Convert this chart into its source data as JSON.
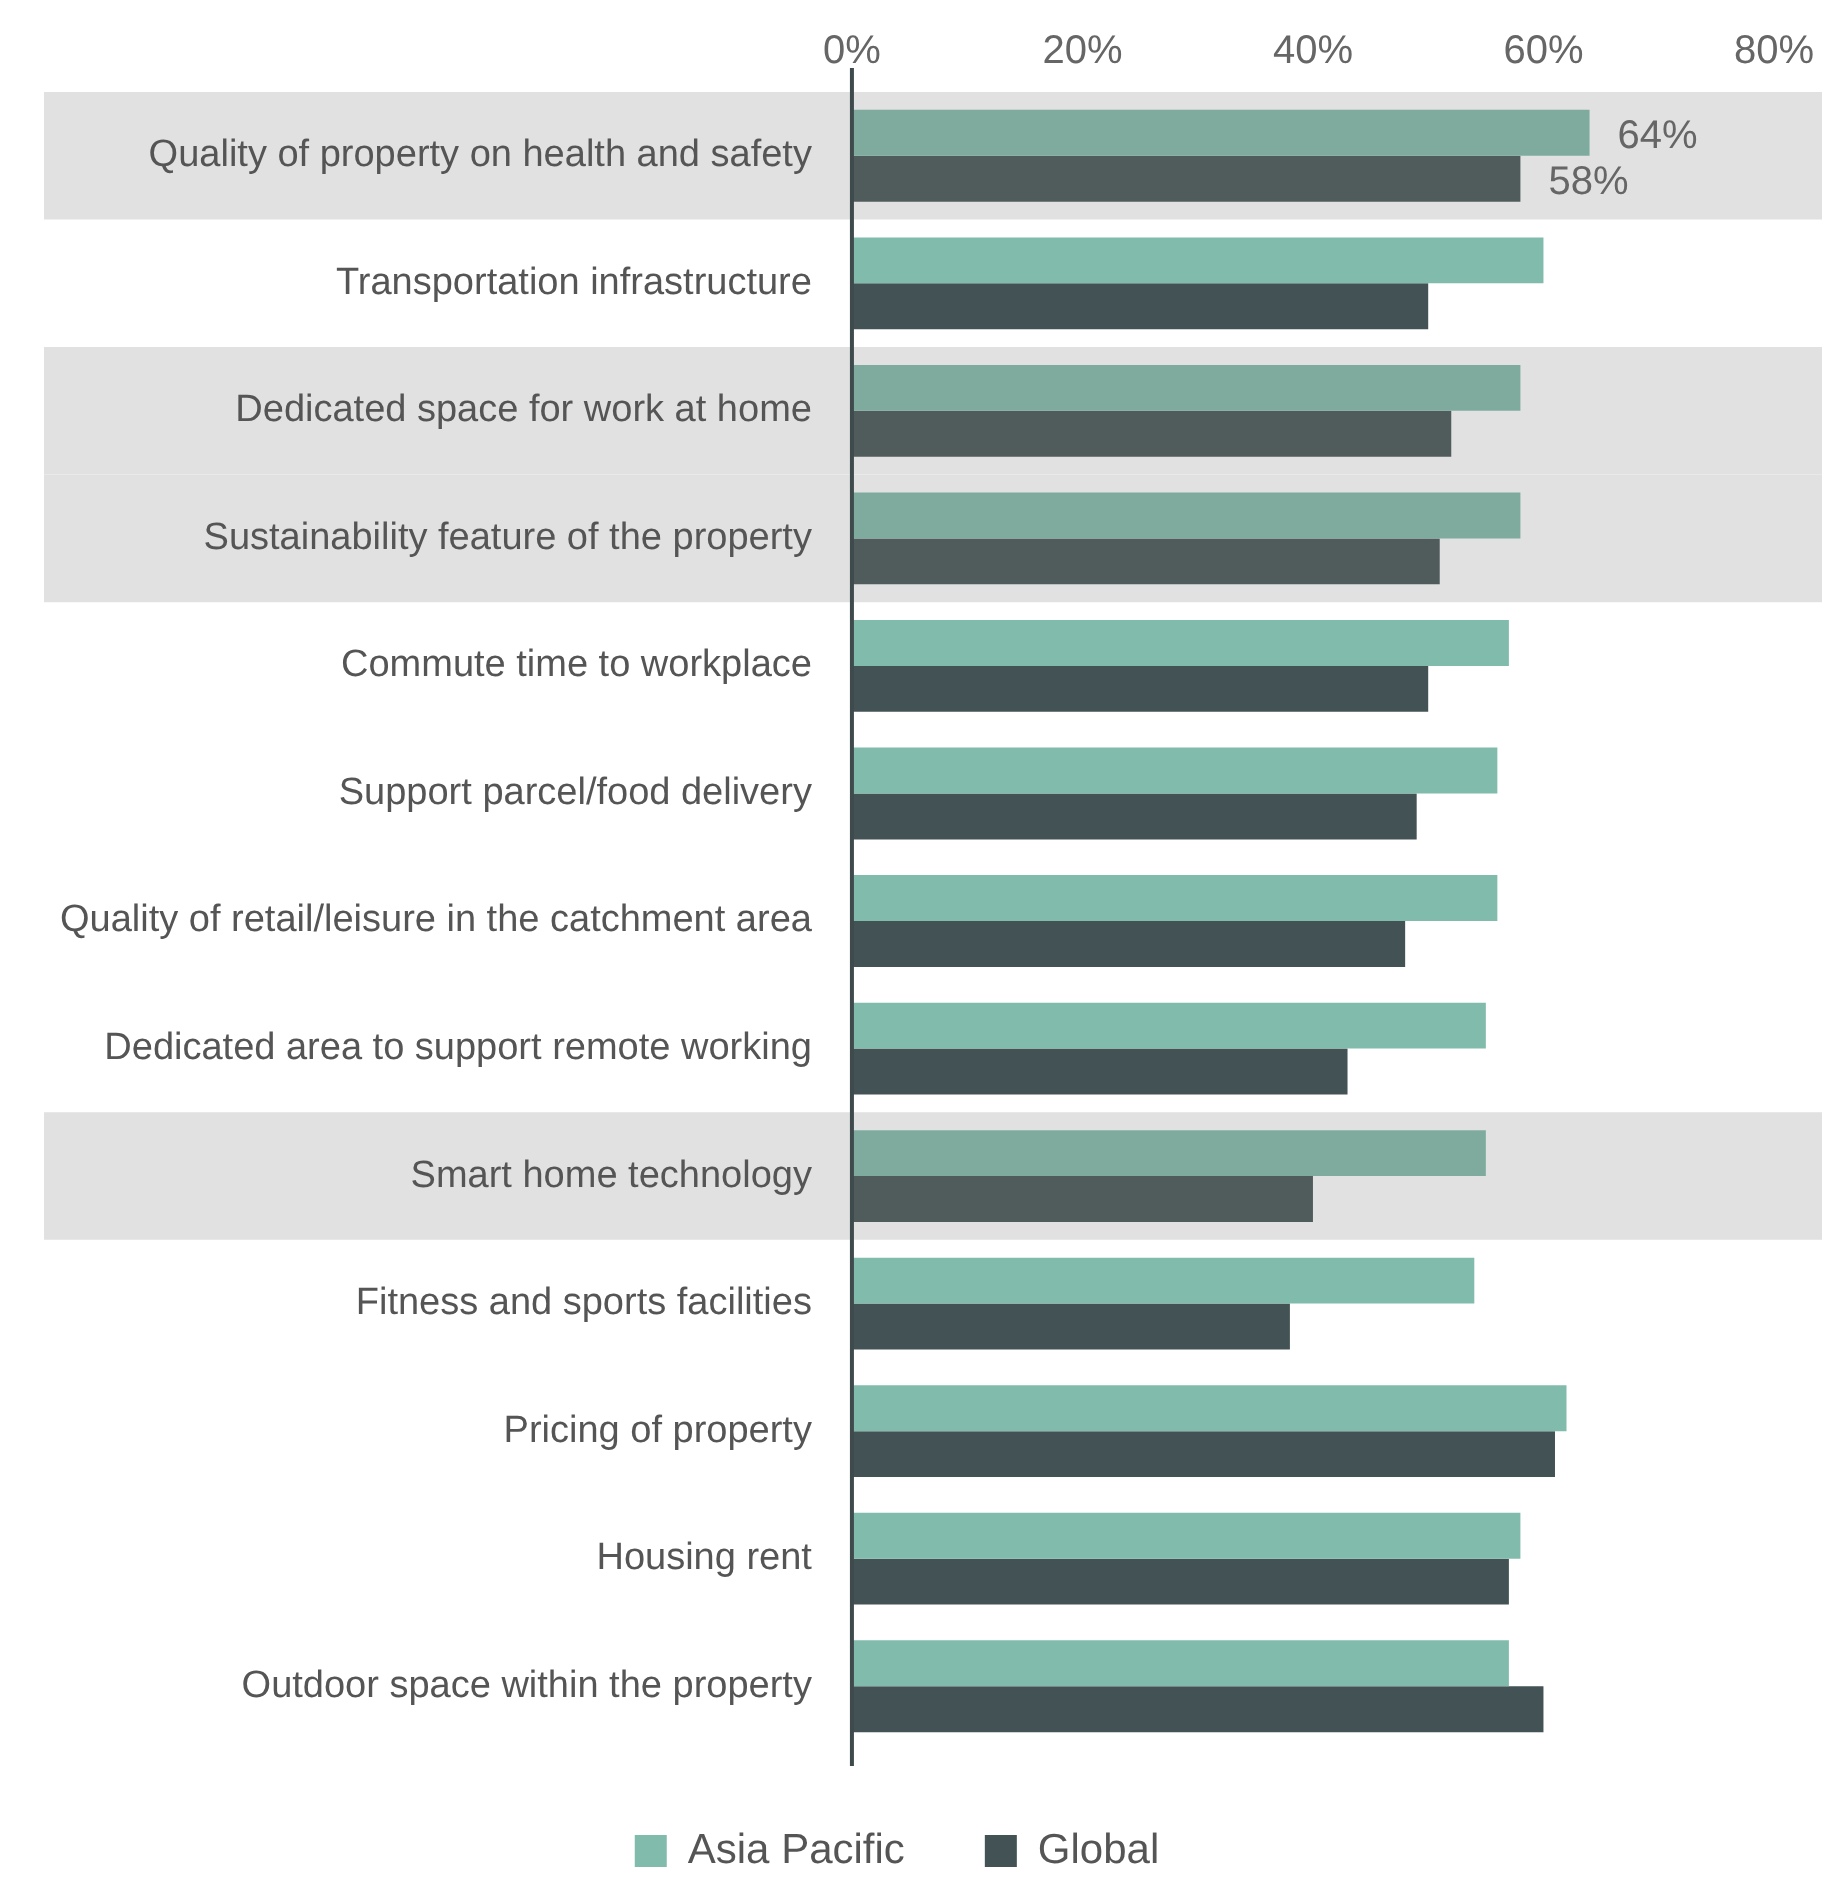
{
  "chart_data": {
    "type": "bar",
    "orientation": "horizontal",
    "categories": [
      "Quality of property on health and safety",
      "Transportation infrastructure",
      "Dedicated space for work at home",
      "Sustainability feature of the property",
      "Commute time to workplace",
      "Support parcel/food delivery",
      "Quality of retail/leisure in the catchment area",
      "Dedicated area to support remote working",
      "Smart home technology",
      "Fitness and sports facilities",
      "Pricing of property",
      "Housing rent",
      "Outdoor space within the property"
    ],
    "series": [
      {
        "name": "Asia Pacific",
        "color": "#81bbac",
        "colors": [
          "#7fab9f",
          "#81bbac",
          "#7fab9f",
          "#7fab9f",
          "#81bbac",
          "#81bbac",
          "#81bbac",
          "#81bbac",
          "#7fab9f",
          "#81bbac",
          "#81bbac",
          "#81bbac",
          "#81bbac"
        ],
        "values": [
          64,
          60,
          58,
          58,
          57,
          56,
          56,
          55,
          55,
          54,
          62,
          58,
          57
        ],
        "value_labels": [
          "64%",
          null,
          null,
          null,
          null,
          null,
          null,
          null,
          null,
          null,
          null,
          null,
          null
        ]
      },
      {
        "name": "Global",
        "color": "#435254",
        "colors": [
          "#505b5c",
          "#435254",
          "#505b5c",
          "#505b5c",
          "#435254",
          "#435254",
          "#435254",
          "#435254",
          "#505b5c",
          "#435254",
          "#435254",
          "#435254",
          "#435254"
        ],
        "values": [
          58,
          50,
          52,
          51,
          50,
          49,
          48,
          43,
          40,
          38,
          61,
          57,
          60
        ],
        "value_labels": [
          "58%",
          null,
          null,
          null,
          null,
          null,
          null,
          null,
          null,
          null,
          null,
          null,
          null
        ]
      }
    ],
    "xlim": [
      0,
      80
    ],
    "xticks": [
      {
        "value": 0,
        "label": "0%"
      },
      {
        "value": 20,
        "label": "20%"
      },
      {
        "value": 40,
        "label": "40%"
      },
      {
        "value": 60,
        "label": "60%"
      },
      {
        "value": 80,
        "label": "80%"
      }
    ],
    "bands": [
      {
        "axis": "y",
        "from": "Quality of property on health and safety",
        "to": "Quality of property on health and safety",
        "color": "#e1e1e1"
      },
      {
        "axis": "y",
        "from": "Dedicated space for work at home",
        "to": "Dedicated space for work at home",
        "color": "#e1e1e1"
      },
      {
        "axis": "y",
        "from": "Sustainability feature of the property",
        "to": "Sustainability feature of the property",
        "color": "#e1e1e1"
      },
      {
        "axis": "y",
        "from": "Smart home technology",
        "to": "Smart home technology",
        "color": "#e1e1e1"
      }
    ],
    "grid": false,
    "legend": "bottom"
  }
}
